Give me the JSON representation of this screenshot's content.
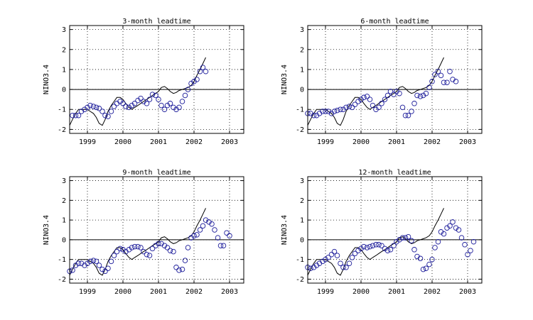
{
  "chart_data": [
    {
      "type": "line",
      "title": "3-month leadtime",
      "ylabel": "NINO3.4",
      "xlabel": "",
      "xlim": [
        1998.5,
        2003.4
      ],
      "ylim": [
        -2.2,
        3.2
      ],
      "xticks": [
        1999,
        2000,
        2001,
        2002,
        2003
      ],
      "xtick_labels": [
        "1999",
        "2000",
        "2001",
        "2002",
        "2003"
      ],
      "yticks": [
        -2,
        -1,
        0,
        1,
        2,
        3
      ],
      "ytick_labels": [
        "-2",
        "-1",
        "0",
        "1",
        "2",
        "3"
      ],
      "grid": true,
      "series": [
        {
          "style": "line",
          "color": "#000000",
          "x": [
            1998.5,
            1998.58,
            1998.67,
            1998.75,
            1998.83,
            1998.92,
            1999.0,
            1999.08,
            1999.17,
            1999.25,
            1999.33,
            1999.42,
            1999.5,
            1999.58,
            1999.67,
            1999.75,
            1999.83,
            1999.92,
            2000.0,
            2000.08,
            2000.17,
            2000.25,
            2000.33,
            2000.42,
            2000.5,
            2000.58,
            2000.67,
            2000.75,
            2000.83,
            2000.92,
            2001.0,
            2001.08,
            2001.17,
            2001.25,
            2001.33,
            2001.42,
            2001.5,
            2001.58,
            2001.67,
            2001.75,
            2001.83,
            2001.92,
            2002.0,
            2002.08,
            2002.17,
            2002.25,
            2002.33
          ],
          "y": [
            -1.8,
            -1.5,
            -1.2,
            -1.0,
            -1.0,
            -1.0,
            -1.0,
            -1.1,
            -1.2,
            -1.4,
            -1.7,
            -1.8,
            -1.5,
            -1.1,
            -0.8,
            -0.6,
            -0.4,
            -0.4,
            -0.5,
            -0.7,
            -0.9,
            -1.0,
            -0.9,
            -0.8,
            -0.7,
            -0.6,
            -0.5,
            -0.4,
            -0.3,
            -0.2,
            -0.1,
            0.1,
            0.15,
            0.05,
            -0.1,
            -0.2,
            -0.15,
            -0.05,
            0.0,
            0.05,
            0.1,
            0.2,
            0.4,
            0.7,
            1.0,
            1.3,
            1.6
          ]
        },
        {
          "style": "markers",
          "color": "#1a1a99",
          "x": [
            1998.58,
            1998.67,
            1998.75,
            1998.83,
            1998.92,
            1999.0,
            1999.08,
            1999.17,
            1999.25,
            1999.33,
            1999.42,
            1999.5,
            1999.58,
            1999.67,
            1999.75,
            1999.83,
            1999.92,
            2000.0,
            2000.08,
            2000.17,
            2000.25,
            2000.33,
            2000.42,
            2000.5,
            2000.58,
            2000.67,
            2000.75,
            2000.83,
            2000.92,
            2001.0,
            2001.08,
            2001.17,
            2001.25,
            2001.33,
            2001.42,
            2001.5,
            2001.58,
            2001.67,
            2001.75,
            2001.83,
            2001.92,
            2002.0,
            2002.08,
            2002.17,
            2002.25,
            2002.33
          ],
          "y": [
            -1.3,
            -1.3,
            -1.3,
            -1.1,
            -1.0,
            -0.9,
            -0.8,
            -0.85,
            -0.9,
            -0.95,
            -1.1,
            -1.3,
            -1.35,
            -1.1,
            -0.85,
            -0.7,
            -0.6,
            -0.7,
            -0.85,
            -0.9,
            -0.8,
            -0.7,
            -0.55,
            -0.45,
            -0.6,
            -0.7,
            -0.5,
            -0.25,
            -0.3,
            -0.5,
            -0.8,
            -1.0,
            -0.8,
            -0.7,
            -0.9,
            -1.0,
            -0.9,
            -0.6,
            -0.3,
            0.0,
            0.3,
            0.4,
            0.5,
            0.9,
            1.1,
            0.9
          ]
        }
      ]
    },
    {
      "type": "line",
      "title": "6-month leadtime",
      "ylabel": "NINO3.4",
      "xlabel": "",
      "xlim": [
        1998.5,
        2003.4
      ],
      "ylim": [
        -2.2,
        3.2
      ],
      "xticks": [
        1999,
        2000,
        2001,
        2002,
        2003
      ],
      "xtick_labels": [
        "1999",
        "2000",
        "2001",
        "2002",
        "2003"
      ],
      "yticks": [
        -2,
        -1,
        0,
        1,
        2,
        3
      ],
      "ytick_labels": [
        "-2",
        "-1",
        "0",
        "1",
        "2",
        "3"
      ],
      "grid": true,
      "series": [
        {
          "style": "line",
          "color": "#000000",
          "x": [
            1998.5,
            1998.58,
            1998.67,
            1998.75,
            1998.83,
            1998.92,
            1999.0,
            1999.08,
            1999.17,
            1999.25,
            1999.33,
            1999.42,
            1999.5,
            1999.58,
            1999.67,
            1999.75,
            1999.83,
            1999.92,
            2000.0,
            2000.08,
            2000.17,
            2000.25,
            2000.33,
            2000.42,
            2000.5,
            2000.58,
            2000.67,
            2000.75,
            2000.83,
            2000.92,
            2001.0,
            2001.08,
            2001.17,
            2001.25,
            2001.33,
            2001.42,
            2001.5,
            2001.58,
            2001.67,
            2001.75,
            2001.83,
            2001.92,
            2002.0,
            2002.08,
            2002.17,
            2002.25,
            2002.33
          ],
          "y": [
            -1.8,
            -1.5,
            -1.2,
            -1.0,
            -1.0,
            -1.0,
            -1.0,
            -1.1,
            -1.2,
            -1.4,
            -1.7,
            -1.8,
            -1.5,
            -1.1,
            -0.8,
            -0.6,
            -0.4,
            -0.4,
            -0.5,
            -0.7,
            -0.9,
            -1.0,
            -0.9,
            -0.8,
            -0.7,
            -0.6,
            -0.5,
            -0.4,
            -0.3,
            -0.2,
            -0.1,
            0.1,
            0.15,
            0.05,
            -0.1,
            -0.2,
            -0.15,
            -0.05,
            0.0,
            0.05,
            0.1,
            0.2,
            0.4,
            0.7,
            1.0,
            1.3,
            1.6
          ]
        },
        {
          "style": "markers",
          "color": "#1a1a99",
          "x": [
            1998.5,
            1998.58,
            1998.67,
            1998.75,
            1998.83,
            1998.92,
            1999.0,
            1999.08,
            1999.17,
            1999.25,
            1999.33,
            1999.42,
            1999.5,
            1999.58,
            1999.67,
            1999.75,
            1999.83,
            1999.92,
            2000.0,
            2000.08,
            2000.17,
            2000.25,
            2000.33,
            2000.42,
            2000.5,
            2000.58,
            2000.67,
            2000.75,
            2000.83,
            2000.92,
            2001.0,
            2001.08,
            2001.17,
            2001.25,
            2001.33,
            2001.42,
            2001.5,
            2001.58,
            2001.67,
            2001.75,
            2001.83,
            2001.92,
            2002.0,
            2002.08,
            2002.17,
            2002.25,
            2002.33,
            2002.42,
            2002.5,
            2002.58,
            2002.67
          ],
          "y": [
            -1.2,
            -1.2,
            -1.3,
            -1.3,
            -1.2,
            -1.1,
            -1.1,
            -1.1,
            -1.2,
            -1.1,
            -1.05,
            -1.0,
            -1.0,
            -0.9,
            -0.85,
            -0.9,
            -0.75,
            -0.6,
            -0.5,
            -0.4,
            -0.35,
            -0.5,
            -0.8,
            -1.0,
            -0.9,
            -0.7,
            -0.5,
            -0.3,
            -0.1,
            -0.25,
            -0.1,
            -0.2,
            -0.9,
            -1.3,
            -1.3,
            -1.1,
            -0.7,
            -0.3,
            -0.35,
            -0.3,
            -0.2,
            0.1,
            0.4,
            0.75,
            0.9,
            0.7,
            0.35,
            0.35,
            0.9,
            0.5,
            0.4
          ]
        }
      ]
    },
    {
      "type": "line",
      "title": "9-month leadtime",
      "ylabel": "NINO3.4",
      "xlabel": "",
      "xlim": [
        1998.5,
        2003.4
      ],
      "ylim": [
        -2.2,
        3.2
      ],
      "xticks": [
        1999,
        2000,
        2001,
        2002,
        2003
      ],
      "xtick_labels": [
        "1999",
        "2000",
        "2001",
        "2002",
        "2003"
      ],
      "yticks": [
        -2,
        -1,
        0,
        1,
        2,
        3
      ],
      "ytick_labels": [
        "-2",
        "-1",
        "0",
        "1",
        "2",
        "3"
      ],
      "grid": true,
      "series": [
        {
          "style": "line",
          "color": "#000000",
          "x": [
            1998.5,
            1998.58,
            1998.67,
            1998.75,
            1998.83,
            1998.92,
            1999.0,
            1999.08,
            1999.17,
            1999.25,
            1999.33,
            1999.42,
            1999.5,
            1999.58,
            1999.67,
            1999.75,
            1999.83,
            1999.92,
            2000.0,
            2000.08,
            2000.17,
            2000.25,
            2000.33,
            2000.42,
            2000.5,
            2000.58,
            2000.67,
            2000.75,
            2000.83,
            2000.92,
            2001.0,
            2001.08,
            2001.17,
            2001.25,
            2001.33,
            2001.42,
            2001.5,
            2001.58,
            2001.67,
            2001.75,
            2001.83,
            2001.92,
            2002.0,
            2002.08,
            2002.17,
            2002.25,
            2002.33
          ],
          "y": [
            -1.8,
            -1.5,
            -1.2,
            -1.0,
            -1.0,
            -1.0,
            -1.0,
            -1.1,
            -1.2,
            -1.4,
            -1.7,
            -1.8,
            -1.5,
            -1.1,
            -0.8,
            -0.6,
            -0.4,
            -0.4,
            -0.5,
            -0.7,
            -0.9,
            -1.0,
            -0.9,
            -0.8,
            -0.7,
            -0.6,
            -0.5,
            -0.4,
            -0.3,
            -0.2,
            -0.1,
            0.1,
            0.15,
            0.05,
            -0.1,
            -0.2,
            -0.15,
            -0.05,
            0.0,
            0.05,
            0.1,
            0.2,
            0.4,
            0.7,
            1.0,
            1.3,
            1.6
          ]
        },
        {
          "style": "markers",
          "color": "#1a1a99",
          "x": [
            1998.5,
            1998.58,
            1998.67,
            1998.75,
            1998.83,
            1998.92,
            1999.0,
            1999.08,
            1999.17,
            1999.25,
            1999.33,
            1999.42,
            1999.5,
            1999.58,
            1999.67,
            1999.75,
            1999.83,
            1999.92,
            2000.0,
            2000.08,
            2000.17,
            2000.25,
            2000.33,
            2000.42,
            2000.5,
            2000.58,
            2000.67,
            2000.75,
            2000.83,
            2000.92,
            2001.0,
            2001.08,
            2001.17,
            2001.25,
            2001.33,
            2001.42,
            2001.5,
            2001.58,
            2001.67,
            2001.75,
            2001.83,
            2001.92,
            2002.0,
            2002.08,
            2002.17,
            2002.25,
            2002.33,
            2002.42,
            2002.5,
            2002.58,
            2002.67,
            2002.75,
            2002.83,
            2002.92,
            2003.0
          ],
          "y": [
            -1.6,
            -1.55,
            -1.3,
            -1.2,
            -1.2,
            -1.3,
            -1.2,
            -1.1,
            -1.05,
            -1.1,
            -1.3,
            -1.5,
            -1.6,
            -1.45,
            -1.1,
            -0.8,
            -0.6,
            -0.45,
            -0.5,
            -0.6,
            -0.5,
            -0.4,
            -0.35,
            -0.35,
            -0.4,
            -0.6,
            -0.75,
            -0.8,
            -0.45,
            -0.3,
            -0.2,
            -0.2,
            -0.3,
            -0.4,
            -0.55,
            -0.6,
            -1.4,
            -1.55,
            -1.5,
            -1.05,
            -0.4,
            0.1,
            0.2,
            0.25,
            0.5,
            0.7,
            1.0,
            0.9,
            0.8,
            0.5,
            0.1,
            -0.3,
            -0.3,
            0.35,
            0.2
          ]
        }
      ]
    },
    {
      "type": "line",
      "title": "12-month leadtime",
      "ylabel": "NINO3.4",
      "xlabel": "",
      "xlim": [
        1998.5,
        2003.4
      ],
      "ylim": [
        -2.2,
        3.2
      ],
      "xticks": [
        1999,
        2000,
        2001,
        2002,
        2003
      ],
      "xtick_labels": [
        "1999",
        "2000",
        "2001",
        "2002",
        "2003"
      ],
      "yticks": [
        -2,
        -1,
        0,
        1,
        2,
        3
      ],
      "ytick_labels": [
        "-2",
        "-1",
        "0",
        "1",
        "2",
        "3"
      ],
      "grid": true,
      "series": [
        {
          "style": "line",
          "color": "#000000",
          "x": [
            1998.5,
            1998.58,
            1998.67,
            1998.75,
            1998.83,
            1998.92,
            1999.0,
            1999.08,
            1999.17,
            1999.25,
            1999.33,
            1999.42,
            1999.5,
            1999.58,
            1999.67,
            1999.75,
            1999.83,
            1999.92,
            2000.0,
            2000.08,
            2000.17,
            2000.25,
            2000.33,
            2000.42,
            2000.5,
            2000.58,
            2000.67,
            2000.75,
            2000.83,
            2000.92,
            2001.0,
            2001.08,
            2001.17,
            2001.25,
            2001.33,
            2001.42,
            2001.5,
            2001.58,
            2001.67,
            2001.75,
            2001.83,
            2001.92,
            2002.0,
            2002.08,
            2002.17,
            2002.25,
            2002.33
          ],
          "y": [
            -1.8,
            -1.5,
            -1.2,
            -1.0,
            -1.0,
            -1.0,
            -1.0,
            -1.1,
            -1.2,
            -1.4,
            -1.7,
            -1.8,
            -1.5,
            -1.1,
            -0.8,
            -0.6,
            -0.4,
            -0.4,
            -0.5,
            -0.7,
            -0.9,
            -1.0,
            -0.9,
            -0.8,
            -0.7,
            -0.6,
            -0.5,
            -0.4,
            -0.3,
            -0.2,
            -0.1,
            0.1,
            0.15,
            0.05,
            -0.1,
            -0.2,
            -0.15,
            -0.05,
            0.0,
            0.05,
            0.1,
            0.2,
            0.4,
            0.7,
            1.0,
            1.3,
            1.6
          ]
        },
        {
          "style": "markers",
          "color": "#1a1a99",
          "x": [
            1998.5,
            1998.58,
            1998.67,
            1998.75,
            1998.83,
            1998.92,
            1999.0,
            1999.08,
            1999.17,
            1999.25,
            1999.33,
            1999.42,
            1999.5,
            1999.58,
            1999.67,
            1999.75,
            1999.83,
            1999.92,
            2000.0,
            2000.08,
            2000.17,
            2000.25,
            2000.33,
            2000.42,
            2000.5,
            2000.58,
            2000.67,
            2000.75,
            2000.83,
            2000.92,
            2001.0,
            2001.08,
            2001.17,
            2001.25,
            2001.33,
            2001.42,
            2001.5,
            2001.58,
            2001.67,
            2001.75,
            2001.83,
            2001.92,
            2002.0,
            2002.08,
            2002.17,
            2002.25,
            2002.33,
            2002.42,
            2002.5,
            2002.58,
            2002.67,
            2002.75,
            2002.83,
            2002.92,
            2003.0,
            2003.08,
            2003.17
          ],
          "y": [
            -1.4,
            -1.45,
            -1.4,
            -1.3,
            -1.2,
            -1.1,
            -1.0,
            -0.9,
            -0.75,
            -0.6,
            -0.8,
            -1.2,
            -1.4,
            -1.4,
            -1.2,
            -0.9,
            -0.7,
            -0.55,
            -0.45,
            -0.35,
            -0.4,
            -0.35,
            -0.3,
            -0.25,
            -0.25,
            -0.3,
            -0.45,
            -0.55,
            -0.5,
            -0.3,
            -0.1,
            0.0,
            0.1,
            0.1,
            0.15,
            -0.05,
            -0.5,
            -0.85,
            -0.95,
            -1.5,
            -1.45,
            -1.25,
            -1.0,
            -0.4,
            -0.1,
            0.4,
            0.3,
            0.6,
            0.7,
            0.9,
            0.6,
            0.5,
            0.1,
            -0.25,
            -0.75,
            -0.55,
            -0.1
          ]
        }
      ]
    }
  ]
}
